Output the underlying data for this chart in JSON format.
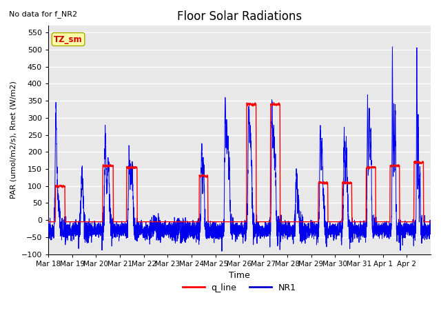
{
  "title": "Floor Solar Radiations",
  "xlabel": "Time",
  "ylabel": "PAR (umol/m2/s), Rnet (W/m2)",
  "ylim": [
    -100,
    570
  ],
  "yticks": [
    -100,
    -50,
    0,
    50,
    100,
    150,
    200,
    250,
    300,
    350,
    400,
    450,
    500,
    550
  ],
  "xtick_labels": [
    "Mar 18",
    "Mar 19",
    "Mar 20",
    "Mar 21",
    "Mar 22",
    "Mar 23",
    "Mar 24",
    "Mar 25",
    "Mar 26",
    "Mar 27",
    "Mar 28",
    "Mar 29",
    "Mar 30",
    "Mar 31",
    "Apr 1",
    "Apr 2"
  ],
  "note_text": "No data for f_NR2",
  "legend_label1": "q_line",
  "legend_label2": "NR1",
  "legend_color1": "#FF0000",
  "legend_color2": "#0000CC",
  "tz_label": "TZ_sm",
  "bg_color": "#E8E8E8",
  "grid_color": "#FFFFFF",
  "line_color_red": "#FF0000",
  "line_color_blue": "#0000EE",
  "red_base": -5,
  "red_night_noise": 2,
  "blue_night_base": -30,
  "blue_night_noise": 12
}
